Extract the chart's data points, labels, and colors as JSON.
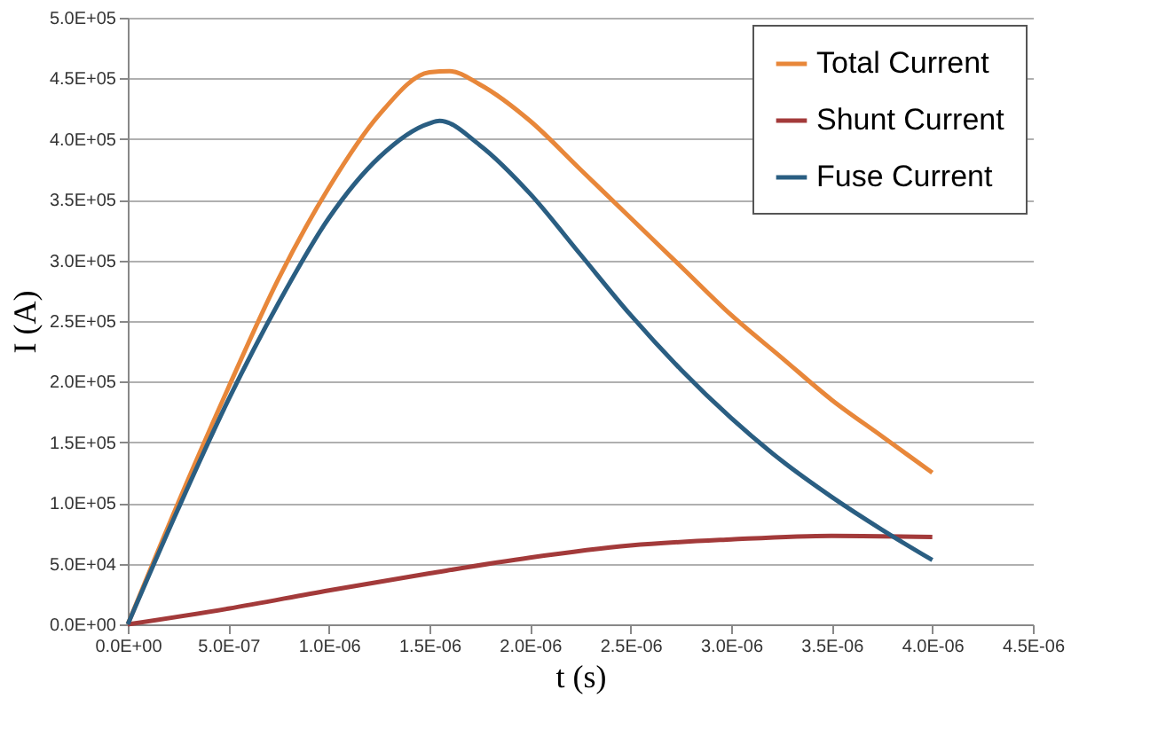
{
  "chart_data": {
    "type": "line",
    "xlabel": "t (s)",
    "ylabel": "I (A)",
    "grid": "y",
    "legend": "top right",
    "marker": "none",
    "line_style": "solid",
    "xlim": [
      0,
      4.5e-06
    ],
    "ylim": [
      0,
      500000
    ],
    "xticks": [
      {
        "value": 0,
        "label": "0.0E+00"
      },
      {
        "value": 5e-07,
        "label": "5.0E-07"
      },
      {
        "value": 1e-06,
        "label": "1.0E-06"
      },
      {
        "value": 1.5e-06,
        "label": "1.5E-06"
      },
      {
        "value": 2e-06,
        "label": "2.0E-06"
      },
      {
        "value": 2.5e-06,
        "label": "2.5E-06"
      },
      {
        "value": 3e-06,
        "label": "3.0E-06"
      },
      {
        "value": 3.5e-06,
        "label": "3.5E-06"
      },
      {
        "value": 4e-06,
        "label": "4.0E-06"
      },
      {
        "value": 4.5e-06,
        "label": "4.5E-06"
      }
    ],
    "yticks": [
      {
        "value": 0,
        "label": "0.0E+00"
      },
      {
        "value": 50000,
        "label": "5.0E+04"
      },
      {
        "value": 100000,
        "label": "1.0E+05"
      },
      {
        "value": 150000,
        "label": "1.5E+05"
      },
      {
        "value": 200000,
        "label": "2.0E+05"
      },
      {
        "value": 250000,
        "label": "2.5E+05"
      },
      {
        "value": 300000,
        "label": "3.0E+05"
      },
      {
        "value": 350000,
        "label": "3.5E+05"
      },
      {
        "value": 400000,
        "label": "4.0E+05"
      },
      {
        "value": 450000,
        "label": "4.5E+05"
      },
      {
        "value": 500000,
        "label": "5.0E+05"
      }
    ],
    "series": [
      {
        "name": "Total Current",
        "color": "#e8873a",
        "x": [
          0,
          2.5e-07,
          5e-07,
          7.5e-07,
          1e-06,
          1.25e-06,
          1.5e-06,
          1.6e-06,
          1.75e-06,
          2e-06,
          2.25e-06,
          2.5e-06,
          2.75e-06,
          3e-06,
          3.25e-06,
          3.5e-06,
          3.75e-06,
          4e-06
        ],
        "values": [
          0,
          100000,
          195000,
          285000,
          360000,
          420000,
          455000,
          456000,
          445000,
          415000,
          375000,
          335000,
          295000,
          255000,
          220000,
          185000,
          155000,
          125000
        ]
      },
      {
        "name": "Shunt Current",
        "color": "#a33a3a",
        "x": [
          0,
          5e-07,
          1e-06,
          1.5e-06,
          2e-06,
          2.5e-06,
          3e-06,
          3.5e-06,
          4e-06
        ],
        "values": [
          0,
          13000,
          28000,
          42000,
          55000,
          65000,
          70000,
          73000,
          72000
        ]
      },
      {
        "name": "Fuse Current",
        "color": "#2a5e82",
        "x": [
          0,
          2.5e-07,
          5e-07,
          7.5e-07,
          1e-06,
          1.25e-06,
          1.5e-06,
          1.55e-06,
          1.75e-06,
          2e-06,
          2.25e-06,
          2.5e-06,
          2.75e-06,
          3e-06,
          3.25e-06,
          3.5e-06,
          3.75e-06,
          4e-06
        ],
        "values": [
          0,
          95000,
          185000,
          265000,
          335000,
          385000,
          413000,
          415000,
          395000,
          355000,
          305000,
          255000,
          210000,
          170000,
          135000,
          105000,
          78000,
          53000
        ]
      }
    ]
  }
}
